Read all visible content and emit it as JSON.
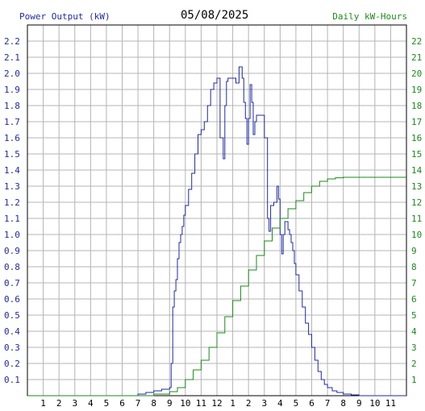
{
  "header": {
    "left_label": "Power Output (kW)",
    "date": "05/08/2025",
    "right_label": "Daily kW-Hours"
  },
  "colors": {
    "power": "#1f2aa8",
    "energy": "#1a8a1a",
    "grid": "#b4b4b4",
    "frame": "#000000"
  },
  "chart_data": {
    "type": "line",
    "title": "05/08/2025",
    "ylabel_left": "Power Output (kW)",
    "ylabel_right": "Daily kW-Hours",
    "x_tick_labels": [
      "1",
      "2",
      "3",
      "4",
      "5",
      "6",
      "7",
      "8",
      "9",
      "10",
      "11",
      "12",
      "1",
      "2",
      "3",
      "4",
      "5",
      "6",
      "7",
      "8",
      "9",
      "10",
      "11"
    ],
    "x_range_hours": [
      0,
      24
    ],
    "y_left_range": [
      0,
      2.3
    ],
    "y_left_ticks": [
      "0.1",
      "0.2",
      "0.3",
      "0.4",
      "0.5",
      "0.6",
      "0.7",
      "0.8",
      "0.9",
      "1.0",
      "1.1",
      "1.2",
      "1.3",
      "1.4",
      "1.5",
      "1.6",
      "1.7",
      "1.8",
      "1.9",
      "2.0",
      "2.1",
      "2.2"
    ],
    "y_right_range": [
      0,
      23
    ],
    "y_right_ticks": [
      "1",
      "2",
      "3",
      "4",
      "5",
      "6",
      "7",
      "8",
      "9",
      "10",
      "11",
      "12",
      "13",
      "14",
      "15",
      "16",
      "17",
      "18",
      "19",
      "20",
      "21",
      "22"
    ],
    "grid": true,
    "series": [
      {
        "name": "Power Output (kW)",
        "axis": "left",
        "x": [
          0,
          6.5,
          7.0,
          7.5,
          8.0,
          8.5,
          8.8,
          9.0,
          9.1,
          9.2,
          9.3,
          9.4,
          9.5,
          9.6,
          9.7,
          9.8,
          9.9,
          10.0,
          10.2,
          10.4,
          10.6,
          10.8,
          11.0,
          11.2,
          11.4,
          11.6,
          11.8,
          12.0,
          12.2,
          12.4,
          12.5,
          12.6,
          12.7,
          12.8,
          13.0,
          13.2,
          13.4,
          13.6,
          13.7,
          13.8,
          13.9,
          14.0,
          14.1,
          14.2,
          14.3,
          14.4,
          14.5,
          14.6,
          14.7,
          14.8,
          15.0,
          15.2,
          15.3,
          15.4,
          15.6,
          15.8,
          15.9,
          16.0,
          16.1,
          16.2,
          16.3,
          16.4,
          16.5,
          16.6,
          16.7,
          16.8,
          16.9,
          17.0,
          17.2,
          17.4,
          17.6,
          17.8,
          18.0,
          18.2,
          18.4,
          18.6,
          18.8,
          19.0,
          19.3,
          19.6,
          20.0,
          20.5,
          21.0,
          21.5,
          24
        ],
        "y": [
          0.0,
          0.0,
          0.01,
          0.02,
          0.03,
          0.04,
          0.04,
          0.05,
          0.2,
          0.55,
          0.65,
          0.72,
          0.85,
          0.95,
          1.0,
          1.05,
          1.12,
          1.18,
          1.28,
          1.38,
          1.5,
          1.62,
          1.65,
          1.7,
          1.8,
          1.9,
          1.94,
          1.97,
          1.6,
          1.47,
          1.8,
          1.95,
          1.97,
          1.97,
          1.97,
          1.94,
          2.04,
          1.97,
          1.82,
          1.72,
          1.56,
          1.72,
          1.93,
          1.82,
          1.62,
          1.7,
          1.74,
          1.74,
          1.74,
          1.74,
          1.6,
          1.1,
          1.02,
          1.18,
          1.2,
          1.3,
          1.22,
          1.0,
          0.88,
          1.0,
          1.08,
          1.08,
          1.03,
          1.0,
          0.95,
          0.9,
          0.82,
          0.75,
          0.65,
          0.55,
          0.45,
          0.38,
          0.3,
          0.22,
          0.15,
          0.1,
          0.07,
          0.05,
          0.03,
          0.02,
          0.01,
          0.005,
          0.0,
          0.0,
          0.0
        ]
      },
      {
        "name": "Daily kW-Hours",
        "axis": "right",
        "x": [
          0,
          7.0,
          8.0,
          9.0,
          9.5,
          10.0,
          10.5,
          11.0,
          11.5,
          12.0,
          12.5,
          13.0,
          13.5,
          14.0,
          14.5,
          15.0,
          15.5,
          16.0,
          16.5,
          17.0,
          17.5,
          18.0,
          18.5,
          19.0,
          19.5,
          20.0,
          21.0,
          22.0,
          24
        ],
        "y": [
          0.0,
          0.0,
          0.1,
          0.25,
          0.5,
          1.0,
          1.6,
          2.2,
          3.0,
          3.9,
          4.9,
          5.9,
          6.8,
          7.8,
          8.7,
          9.6,
          10.4,
          11.0,
          11.6,
          12.1,
          12.6,
          13.0,
          13.3,
          13.45,
          13.52,
          13.55,
          13.55,
          13.55,
          13.55
        ]
      }
    ]
  }
}
